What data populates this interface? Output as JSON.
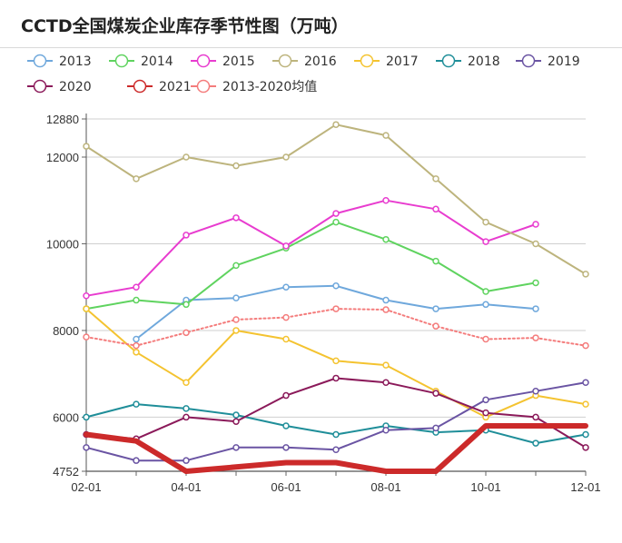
{
  "chart_data": {
    "type": "line",
    "title": "CCTD全国煤炭企业库存季节性图（万吨）",
    "categories": [
      "02-01",
      "03-01",
      "04-01",
      "05-01",
      "06-01",
      "07-01",
      "08-01",
      "09-01",
      "10-01",
      "11-01",
      "12-01"
    ],
    "x_tick_labels": [
      "02-01",
      "04-01",
      "06-01",
      "08-01",
      "10-01",
      "12-01"
    ],
    "y_tick_labels": [
      "12880",
      "12000",
      "10000",
      "8000",
      "6000",
      "4752"
    ],
    "ylim": [
      4752,
      12880
    ],
    "grid": true,
    "legend_position": "top",
    "series": [
      {
        "name": "2013",
        "color": "#6fa8dc",
        "values": [
          null,
          7800,
          8700,
          8750,
          9000,
          9030,
          8700,
          8500,
          8600,
          8500,
          null
        ]
      },
      {
        "name": "2014",
        "color": "#5fd35f",
        "values": [
          8500,
          8700,
          8600,
          9500,
          9900,
          10500,
          10100,
          9600,
          8900,
          9100,
          null
        ]
      },
      {
        "name": "2015",
        "color": "#e83ccf",
        "values": [
          8800,
          9000,
          10200,
          10600,
          9950,
          10700,
          11000,
          10800,
          10050,
          10450,
          null
        ]
      },
      {
        "name": "2016",
        "color": "#bdb47d",
        "values": [
          12250,
          11500,
          12000,
          11800,
          12000,
          12750,
          12500,
          11500,
          10500,
          10000,
          9300
        ]
      },
      {
        "name": "2017",
        "color": "#f4c330",
        "values": [
          8500,
          7500,
          6800,
          8000,
          7800,
          7300,
          7200,
          6600,
          6000,
          6500,
          6300
        ]
      },
      {
        "name": "2018",
        "color": "#1f8e99",
        "values": [
          6000,
          6300,
          6200,
          6050,
          5800,
          5600,
          5800,
          5650,
          5700,
          5400,
          5600
        ]
      },
      {
        "name": "2019",
        "color": "#6a54a3",
        "values": [
          5300,
          5000,
          5000,
          5300,
          5300,
          5250,
          5700,
          5750,
          6400,
          6600,
          6800
        ]
      },
      {
        "name": "2020",
        "color": "#8b1a5a",
        "values": [
          5600,
          5500,
          6000,
          5900,
          6500,
          6900,
          6800,
          6550,
          6100,
          6000,
          5300
        ]
      },
      {
        "name": "2021",
        "color": "#cc2a2a",
        "values": [
          5600,
          5450,
          4752,
          4850,
          4950,
          4950,
          4752,
          4752,
          5800,
          5800,
          5800
        ]
      },
      {
        "name": "2013-2020均值",
        "color": "#f47c7c",
        "dashed": true,
        "values": [
          7850,
          7650,
          7950,
          8250,
          8300,
          8500,
          8480,
          8100,
          7800,
          7830,
          7650
        ]
      }
    ]
  }
}
